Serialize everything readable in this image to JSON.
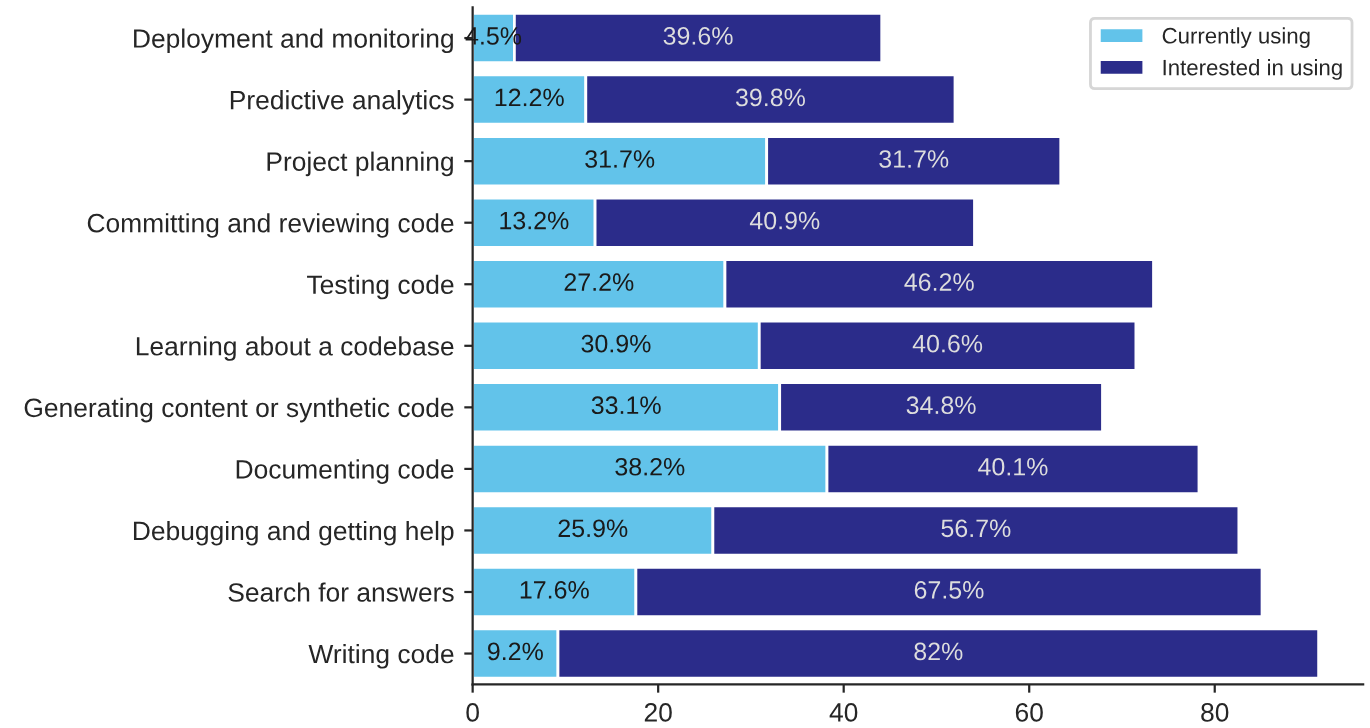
{
  "chart_data": {
    "type": "bar",
    "orientation": "horizontal",
    "stacked": true,
    "categories": [
      "Deployment and monitoring",
      "Predictive analytics",
      "Project planning",
      "Committing and reviewing code",
      "Testing code",
      "Learning about a codebase",
      "Generating content or synthetic code",
      "Documenting code",
      "Debugging and getting help",
      "Search for answers",
      "Writing code"
    ],
    "series": [
      {
        "name": "Currently using",
        "color": "#62c3ea",
        "values": [
          4.5,
          12.2,
          31.7,
          13.2,
          27.2,
          30.9,
          33.1,
          38.2,
          25.9,
          17.6,
          9.2
        ],
        "value_labels": [
          "4.5%",
          "12.2%",
          "31.7%",
          "13.2%",
          "27.2%",
          "30.9%",
          "33.1%",
          "38.2%",
          "25.9%",
          "17.6%",
          "9.2%"
        ]
      },
      {
        "name": "Interested in using",
        "color": "#2b2c8a",
        "values": [
          39.6,
          39.8,
          31.7,
          40.9,
          46.2,
          40.6,
          34.8,
          40.1,
          56.7,
          67.5,
          82
        ],
        "value_labels": [
          "39.6%",
          "39.8%",
          "31.7%",
          "40.9%",
          "46.2%",
          "40.6%",
          "34.8%",
          "40.1%",
          "56.7%",
          "67.5%",
          "82%"
        ]
      }
    ],
    "xlim": [
      0,
      96
    ],
    "xticks": [
      0,
      20,
      40,
      60,
      80
    ],
    "legend": "top right",
    "grid": false
  }
}
